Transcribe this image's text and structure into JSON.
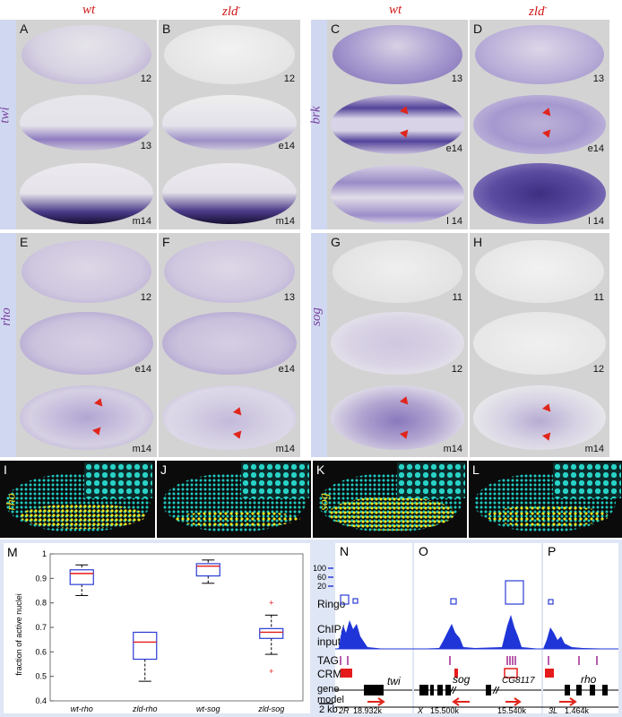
{
  "headers": {
    "wt_left": "wt",
    "zld_left": "zld",
    "wt_right": "wt",
    "zld_right": "zld",
    "minus": "-"
  },
  "gene_labels": {
    "twi": "twi",
    "brk": "brk",
    "rho": "rho",
    "sog": "sog"
  },
  "panels": [
    {
      "id": "A",
      "stages": [
        "12",
        "13",
        "m14"
      ]
    },
    {
      "id": "B",
      "stages": [
        "12",
        "e14",
        "m14"
      ]
    },
    {
      "id": "C",
      "stages": [
        "13",
        "e14",
        "l 14"
      ]
    },
    {
      "id": "D",
      "stages": [
        "13",
        "e14",
        "l 14"
      ]
    },
    {
      "id": "E",
      "stages": [
        "12",
        "e14",
        "m14"
      ]
    },
    {
      "id": "F",
      "stages": [
        "13",
        "e14",
        "m14"
      ]
    },
    {
      "id": "G",
      "stages": [
        "11",
        "12",
        "m14"
      ]
    },
    {
      "id": "H",
      "stages": [
        "11",
        "12",
        "m14"
      ]
    }
  ],
  "seg_panels": [
    {
      "id": "I",
      "gene": "rho"
    },
    {
      "id": "J",
      "gene": ""
    },
    {
      "id": "K",
      "gene": "sog"
    },
    {
      "id": "L",
      "gene": ""
    }
  ],
  "colors": {
    "stain": "#3b2a7e",
    "arrow": "#e0251b",
    "ringo": "#2b3cd6",
    "chip": "#1f35d8",
    "tag": "#a0278f",
    "crm": "#e51b1b",
    "dot_active": "#f2e21b",
    "dot_inactive": "#1fc8c0"
  },
  "panel_M": {
    "label": "M",
    "chart_data": {
      "type": "box",
      "categories": [
        "wt-rho",
        "zld-rho",
        "wt-sog",
        "zld-sog"
      ],
      "ylabel": "fraction of active nuclei",
      "ylim": [
        0.4,
        1.0
      ],
      "yticks": [
        "0.4",
        "0.5",
        "0.6",
        "0.7",
        "0.8",
        "0.9",
        "1"
      ],
      "boxes": [
        {
          "whisker_low": 0.83,
          "q1": 0.875,
          "median": 0.92,
          "q3": 0.935,
          "whisker_high": 0.955,
          "outliers": []
        },
        {
          "whisker_low": 0.48,
          "q1": 0.57,
          "median": 0.64,
          "q3": 0.68,
          "whisker_high": 0.68,
          "outliers": []
        },
        {
          "whisker_low": 0.88,
          "q1": 0.91,
          "median": 0.95,
          "q3": 0.96,
          "whisker_high": 0.975,
          "outliers": []
        },
        {
          "whisker_low": 0.59,
          "q1": 0.655,
          "median": 0.68,
          "q3": 0.695,
          "whisker_high": 0.75,
          "outliers": [
            0.8,
            0.52
          ]
        }
      ]
    }
  },
  "panel_NOP": {
    "labels": {
      "N": "N",
      "O": "O",
      "P": "P"
    },
    "scale_ticks": [
      "100",
      "60",
      "20"
    ],
    "row_labels": {
      "ringo": "Ringo",
      "chip1": "ChIP/",
      "chip2": "input",
      "tag": "TAG",
      "crms": "CRMs",
      "gene1": "gene",
      "gene2": "model"
    },
    "scale_bar": "2 kb",
    "genes": {
      "twi": "twi",
      "sog": "sog",
      "cg": "CG8117",
      "rho": "rho"
    },
    "coords": {
      "n_chr": "2R",
      "n_pos": "18,932k",
      "o_chr": "X",
      "o_pos1": "15,500k",
      "o_pos2": "15,540k",
      "p_chr": "3L",
      "p_pos": "1,464k"
    }
  }
}
